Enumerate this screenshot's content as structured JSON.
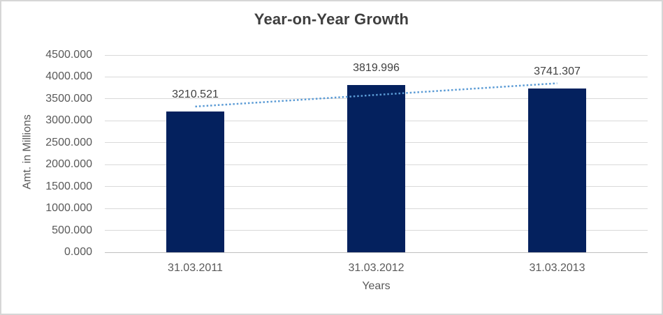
{
  "chart_data": {
    "type": "bar",
    "title": "Year-on-Year Growth",
    "categories": [
      "31.03.2011",
      "31.03.2012",
      "31.03.2013"
    ],
    "values": [
      3210.521,
      3819.996,
      3741.307
    ],
    "data_labels": [
      "3210.521",
      "3819.996",
      "3741.307"
    ],
    "xlabel": "Years",
    "ylabel": "Amt. in Millions",
    "ylim": [
      0,
      4500
    ],
    "ytick_interval": 500,
    "ytick_labels": [
      "0.000",
      "500.000",
      "1000.000",
      "1500.000",
      "2000.000",
      "2500.000",
      "3000.000",
      "3500.000",
      "4000.000",
      "4500.000"
    ],
    "grid": true,
    "legend": "none",
    "bar_color": "#04215e",
    "trendline": {
      "type": "linear",
      "style": "dotted",
      "color": "#5b9bd5"
    },
    "colors": {
      "gridline": "#d9d9d9",
      "axis_line": "#bfbfbf",
      "title_text": "#3f3f3f",
      "axis_text": "#595959",
      "data_label_text": "#404040",
      "frame_border": "#d6d6d6",
      "background": "#ffffff"
    }
  }
}
